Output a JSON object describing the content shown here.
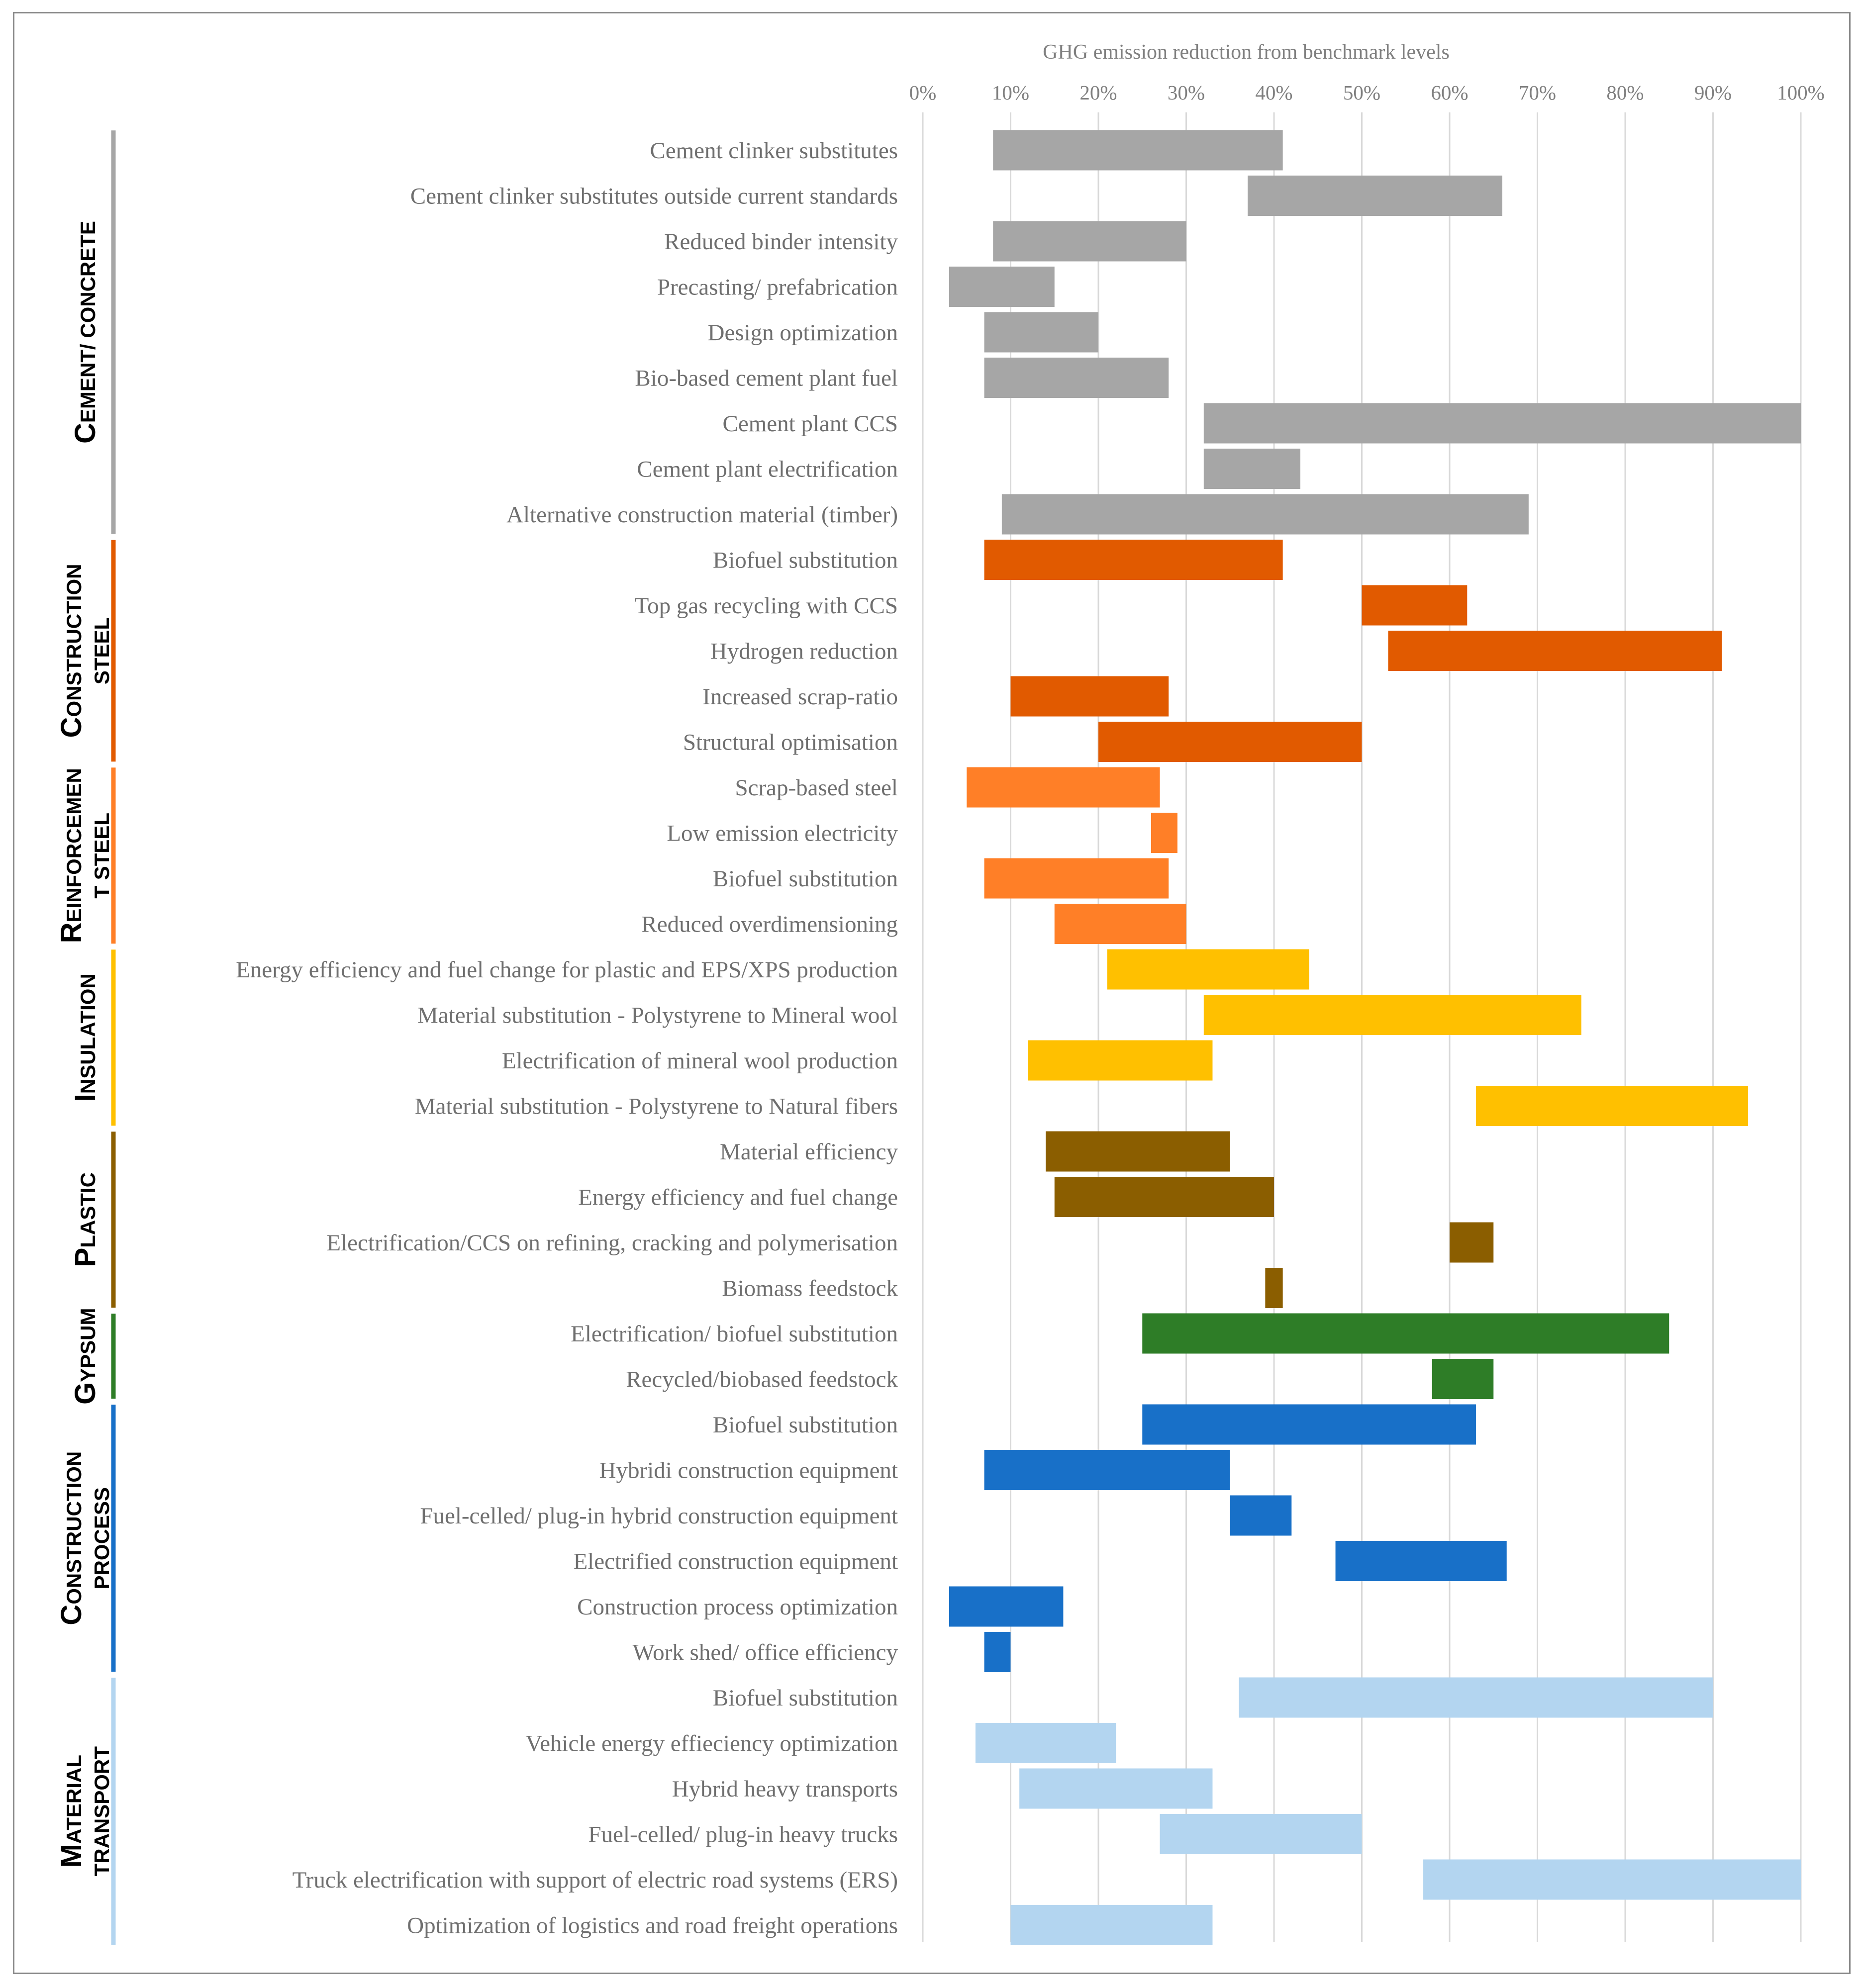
{
  "chart_data": {
    "type": "bar",
    "orientation": "horizontal-range",
    "title": "GHG emission reduction from benchmark levels",
    "xlabel": "GHG emission reduction from benchmark levels",
    "xlim": [
      0,
      100
    ],
    "xticks": [
      "0%",
      "10%",
      "20%",
      "30%",
      "40%",
      "50%",
      "60%",
      "70%",
      "80%",
      "90%",
      "100%"
    ],
    "grid": true,
    "groups": [
      {
        "name": "Cement/ concrete",
        "label_lines": [
          {
            "big": "C",
            "rest": "EMENT/ CONCRETE"
          }
        ],
        "color": "#a6a6a6",
        "items": [
          {
            "label": "Cement clinker substitutes",
            "start": 8,
            "end": 41
          },
          {
            "label": "Cement clinker substitutes outside current standards",
            "start": 37,
            "end": 66
          },
          {
            "label": "Reduced binder intensity",
            "start": 8,
            "end": 30
          },
          {
            "label": "Precasting/ prefabrication",
            "start": 3,
            "end": 15
          },
          {
            "label": "Design optimization",
            "start": 7,
            "end": 20
          },
          {
            "label": "Bio-based cement plant fuel",
            "start": 7,
            "end": 28
          },
          {
            "label": "Cement plant CCS",
            "start": 32,
            "end": 100
          },
          {
            "label": "Cement plant electrification",
            "start": 32,
            "end": 43
          },
          {
            "label": "Alternative construction material (timber)",
            "start": 9,
            "end": 69
          }
        ]
      },
      {
        "name": "Construction steel",
        "label_lines": [
          {
            "big": "C",
            "rest": "ONSTRUCTION"
          },
          {
            "big": "",
            "rest": "STEEL"
          }
        ],
        "color": "#e15a00",
        "items": [
          {
            "label": "Biofuel substitution",
            "start": 7,
            "end": 41
          },
          {
            "label": "Top gas recycling with CCS",
            "start": 50,
            "end": 62
          },
          {
            "label": "Hydrogen reduction",
            "start": 53,
            "end": 91
          },
          {
            "label": "Increased scrap-ratio",
            "start": 10,
            "end": 28
          },
          {
            "label": "Structural optimisation",
            "start": 20,
            "end": 50
          }
        ]
      },
      {
        "name": "Reinforcement steel",
        "label_lines": [
          {
            "big": "R",
            "rest": "EINFORCEMEN"
          },
          {
            "big": "",
            "rest": "T STEEL"
          }
        ],
        "color": "#ff7f27",
        "items": [
          {
            "label": "Scrap-based steel",
            "start": 5,
            "end": 27
          },
          {
            "label": "Low emission electricity",
            "start": 26,
            "end": 29
          },
          {
            "label": "Biofuel substitution",
            "start": 7,
            "end": 28
          },
          {
            "label": "Reduced overdimensioning",
            "start": 15,
            "end": 30
          }
        ]
      },
      {
        "name": "Insulation",
        "label_lines": [
          {
            "big": "I",
            "rest": "NSULATION"
          }
        ],
        "color": "#ffc000",
        "items": [
          {
            "label": "Energy efficiency and fuel change for plastic and EPS/XPS production",
            "start": 21,
            "end": 44
          },
          {
            "label": "Material substitution - Polystyrene to Mineral wool",
            "start": 32,
            "end": 75
          },
          {
            "label": "Electrification of mineral wool production",
            "start": 12,
            "end": 33
          },
          {
            "label": "Material substitution - Polystyrene to Natural fibers",
            "start": 63,
            "end": 94
          }
        ]
      },
      {
        "name": "Plastic",
        "label_lines": [
          {
            "big": "P",
            "rest": "LASTIC"
          }
        ],
        "color": "#8b5e00",
        "items": [
          {
            "label": "Material efficiency",
            "start": 14,
            "end": 35
          },
          {
            "label": "Energy efficiency and fuel change",
            "start": 15,
            "end": 40
          },
          {
            "label": "Electrification/CCS on refining, cracking and polymerisation",
            "start": 60,
            "end": 65
          },
          {
            "label": "Biomass feedstock",
            "start": 39,
            "end": 41
          }
        ]
      },
      {
        "name": "Gypsum",
        "label_lines": [
          {
            "big": "G",
            "rest": "YPSUM"
          }
        ],
        "color": "#2e7d27",
        "items": [
          {
            "label": "Electrification/ biofuel substitution",
            "start": 25,
            "end": 85
          },
          {
            "label": "Recycled/biobased feedstock",
            "start": 58,
            "end": 65
          }
        ]
      },
      {
        "name": "Construction process",
        "label_lines": [
          {
            "big": "C",
            "rest": "ONSTRUCTION"
          },
          {
            "big": "",
            "rest": "PROCESS"
          }
        ],
        "color": "#1870c8",
        "items": [
          {
            "label": "Biofuel substitution",
            "start": 25,
            "end": 63
          },
          {
            "label": "Hybridi construction equipment",
            "start": 7,
            "end": 35
          },
          {
            "label": "Fuel-celled/ plug-in hybrid construction equipment",
            "start": 35,
            "end": 42
          },
          {
            "label": "Electrified construction equipment",
            "start": 47,
            "end": 66.5
          },
          {
            "label": "Construction process optimization",
            "start": 3,
            "end": 16
          },
          {
            "label": "Work shed/ office efficiency",
            "start": 7,
            "end": 10
          }
        ]
      },
      {
        "name": "Material transport",
        "label_lines": [
          {
            "big": "M",
            "rest": "ATERIAL"
          },
          {
            "big": "",
            "rest": "TRANSPORT"
          }
        ],
        "color": "#b3d5f0",
        "items": [
          {
            "label": "Biofuel substitution",
            "start": 36,
            "end": 90
          },
          {
            "label": "Vehicle energy effieciency optimization",
            "start": 6,
            "end": 22
          },
          {
            "label": "Hybrid heavy transports",
            "start": 11,
            "end": 33
          },
          {
            "label": "Fuel-celled/ plug-in heavy trucks",
            "start": 27,
            "end": 50
          },
          {
            "label": "Truck electrification with support of electric road systems (ERS)",
            "start": 57,
            "end": 100
          },
          {
            "label": "Optimization of logistics and road freight operations",
            "start": 10,
            "end": 33
          }
        ]
      }
    ]
  }
}
